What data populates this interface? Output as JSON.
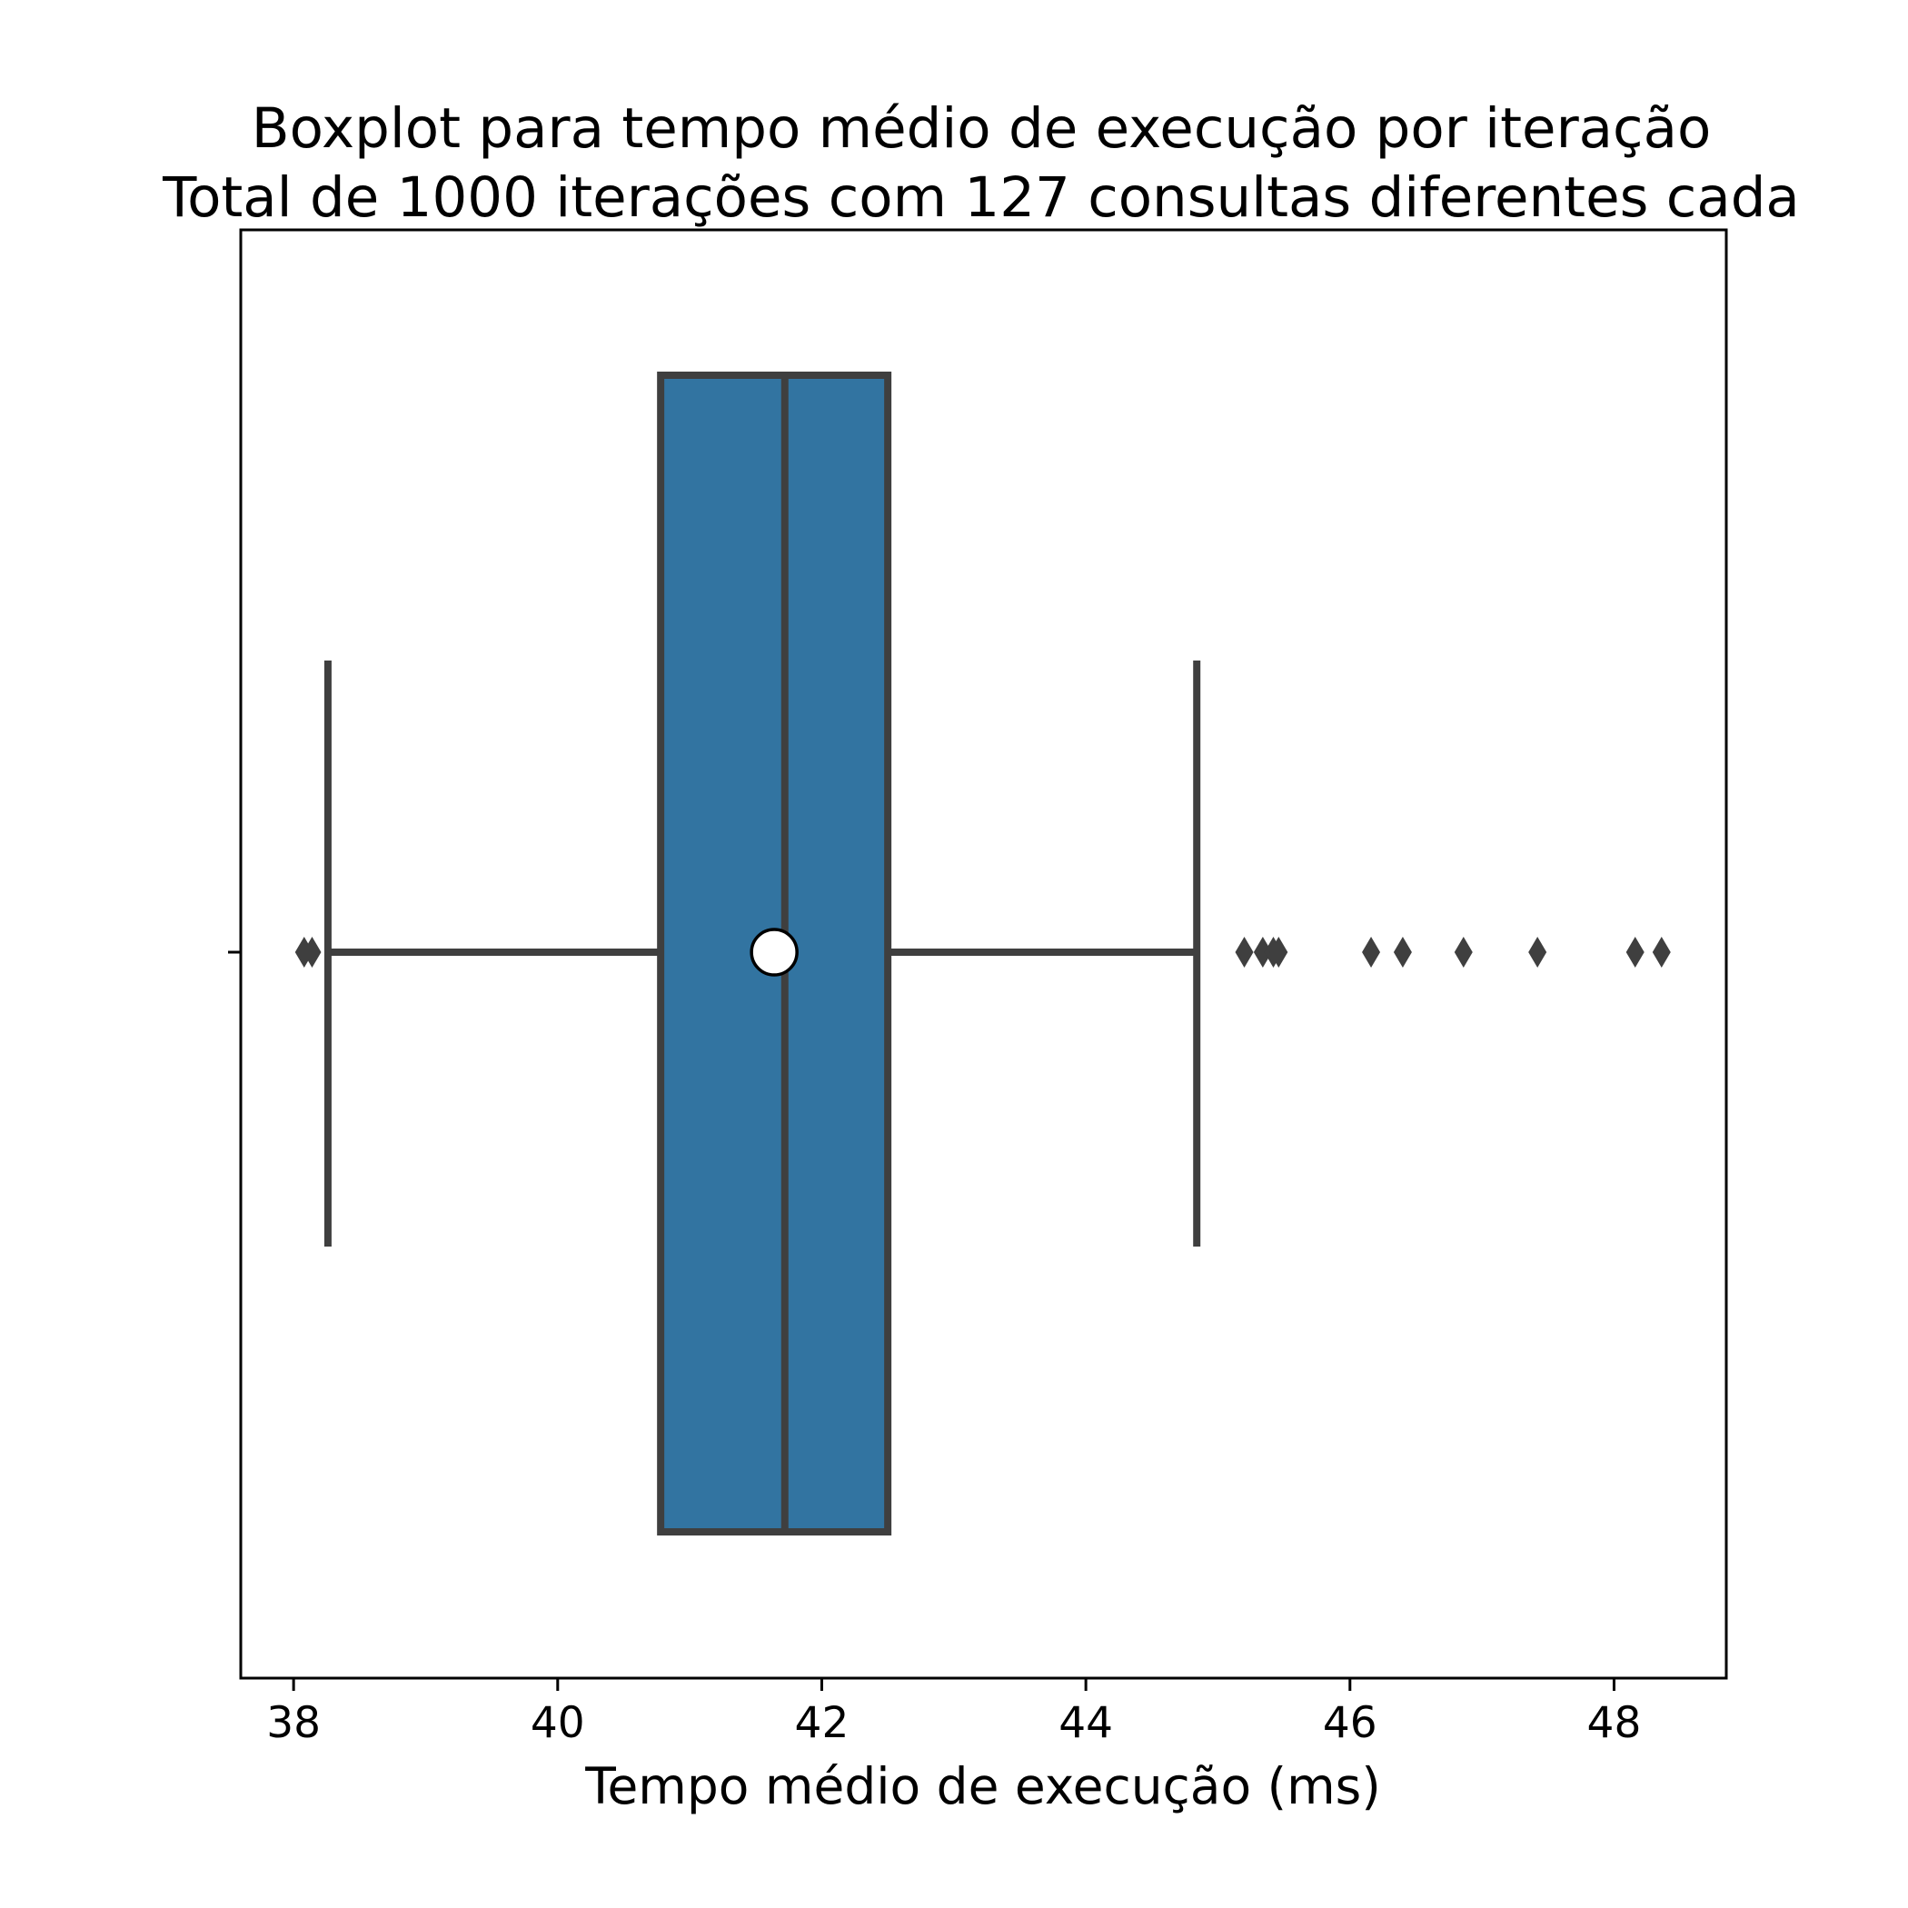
{
  "chart_data": {
    "type": "boxplot",
    "title": "Boxplot para tempo médio de execução por iteração",
    "subtitle": "Total de 1000 iterações com 127 consultas diferentes cada",
    "xlabel": "Tempo médio de execução (ms)",
    "ylabel": "",
    "xlim": [
      37.6,
      48.85
    ],
    "xticks": [
      38,
      40,
      42,
      44,
      46,
      48
    ],
    "xtick_labels": [
      "38",
      "40",
      "42",
      "44",
      "46",
      "48"
    ],
    "grid": false,
    "orientation": "horizontal",
    "box": {
      "whisker_low": 38.26,
      "q1": 40.78,
      "median": 41.72,
      "q3": 42.5,
      "whisker_high": 44.84,
      "mean": 41.64
    },
    "outliers": [
      38.08,
      38.14,
      45.2,
      45.34,
      45.42,
      45.46,
      46.16,
      46.4,
      46.86,
      47.42,
      48.16,
      48.36
    ],
    "colors": {
      "box_fill": "#3274a1",
      "line": "#3f3f3f",
      "mean_marker": "#ffffff"
    }
  }
}
